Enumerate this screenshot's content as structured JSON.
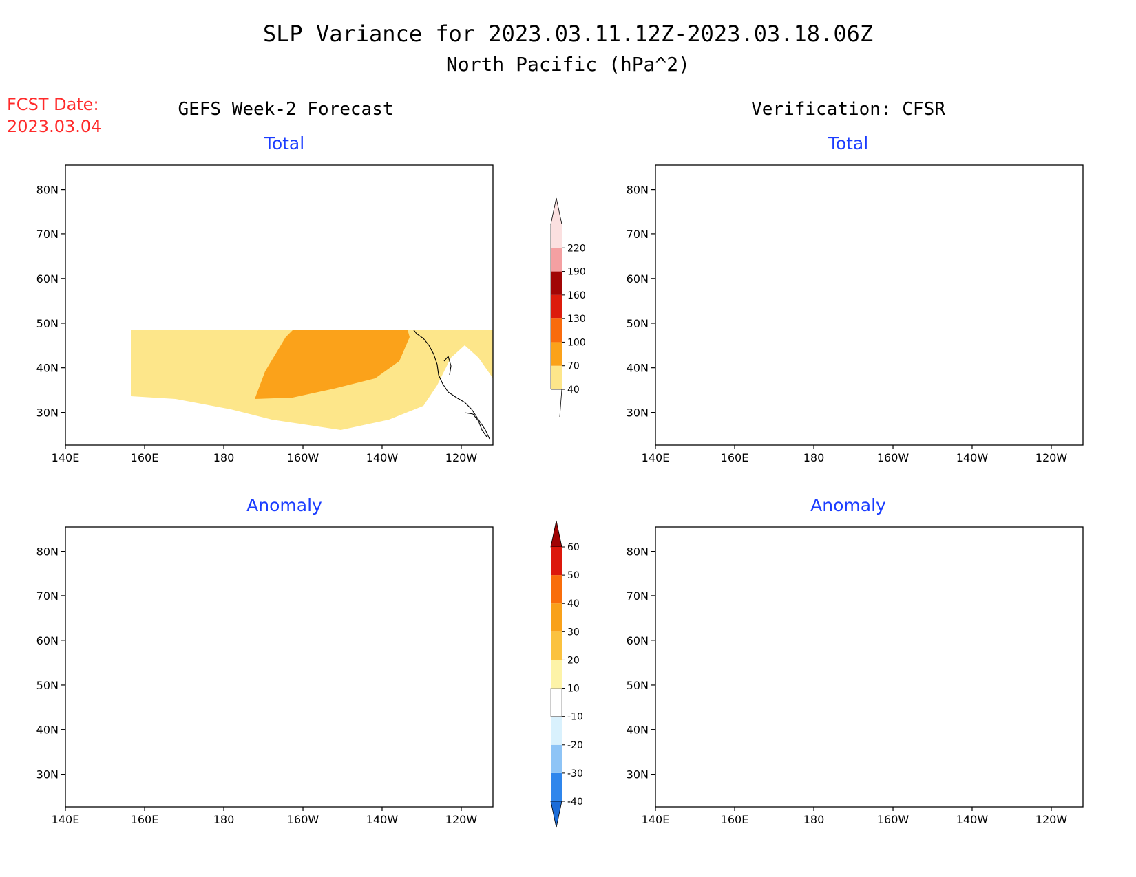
{
  "title": {
    "line1": "SLP Variance for 2023.03.11.12Z-2023.03.18.06Z",
    "line2": "North Pacific (hPa^2)"
  },
  "fcst": {
    "label": "FCST Date:",
    "date": "2023.03.04"
  },
  "columns": {
    "left": "GEFS Week-2 Forecast",
    "right": "Verification: CFSR"
  },
  "panel_titles": {
    "total": "Total",
    "anomaly": "Anomaly"
  },
  "axes": {
    "lon_labels": [
      "140E",
      "160E",
      "180",
      "160W",
      "140W",
      "120W"
    ],
    "lat_labels": [
      "80N",
      "70N",
      "60N",
      "50N",
      "40N",
      "30N"
    ]
  },
  "colorbars": {
    "total": {
      "levels": [
        "40",
        "70",
        "100",
        "130",
        "160",
        "190",
        "220"
      ],
      "colors": [
        "#fde68a",
        "#fba21a",
        "#f96b0d",
        "#dc1c0c",
        "#a10505",
        "#f4a0a2",
        "#fbe0e0"
      ]
    },
    "anomaly": {
      "levels": [
        "-40",
        "-30",
        "-20",
        "-10",
        "10",
        "20",
        "30",
        "40",
        "50",
        "60"
      ],
      "colors": [
        "#1b6cd8",
        "#2f86ec",
        "#8ec4f6",
        "#d9f1fd",
        "#ffffff",
        "#fdf3a8",
        "#fbc23f",
        "#f9a11a",
        "#f96d0b",
        "#dc180c",
        "#a10404"
      ]
    }
  },
  "colors": {
    "title_text": "#000000",
    "fcst_text": "#ff2a2a",
    "panel_title_text": "#1a3cff",
    "coastline": "#000000"
  }
}
